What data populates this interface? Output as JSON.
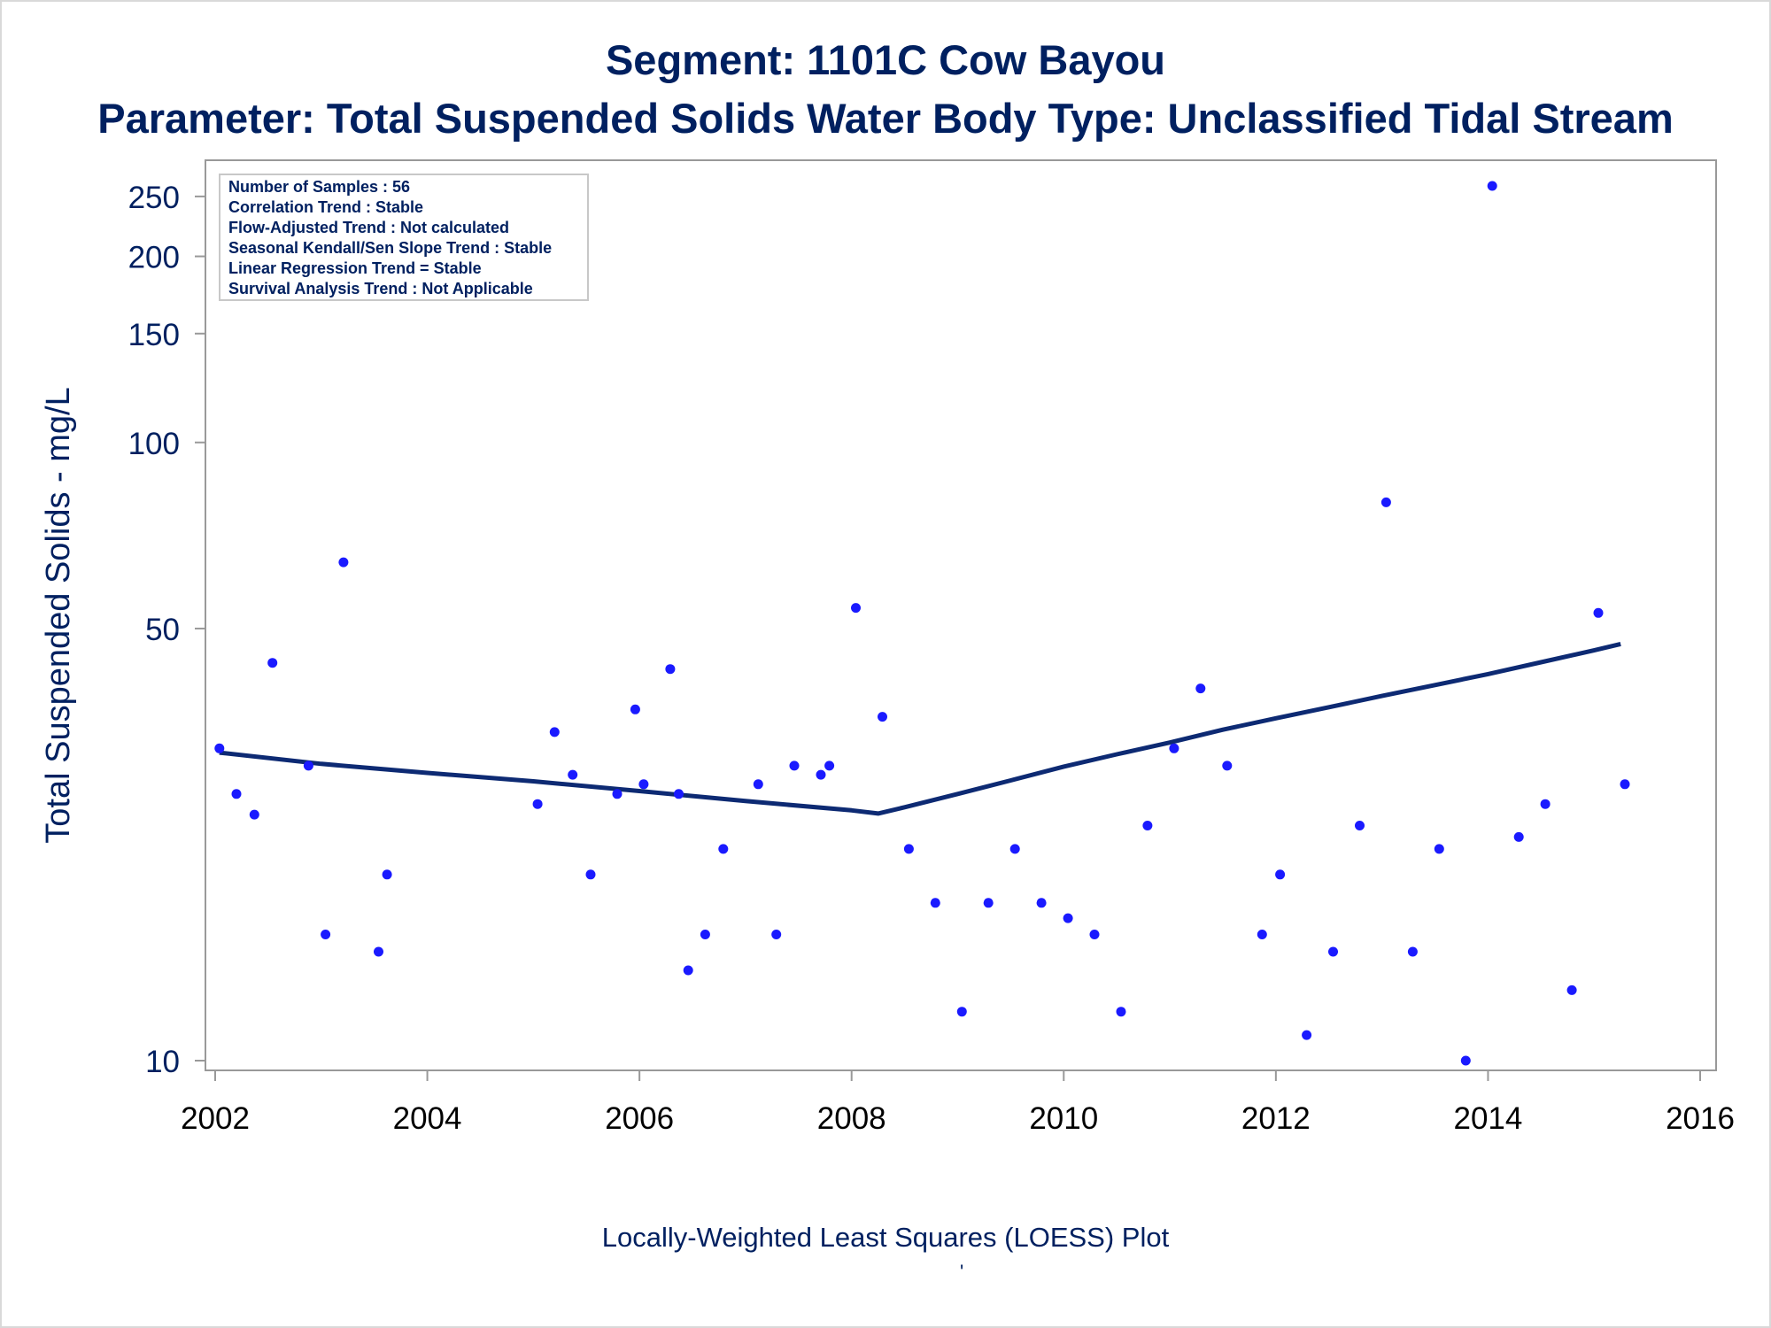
{
  "colors": {
    "text": "#002060",
    "marker": "#1a1aff",
    "loess_line": "#0d2a73",
    "axis": "#999999",
    "info_border": "#c8c8c8"
  },
  "titles": {
    "line1": "Segment: 1101C  Cow Bayou",
    "line2": "Parameter: Total Suspended Solids   Water Body Type: Unclassified Tidal Stream"
  },
  "info_box": [
    "Number of Samples : 56",
    "Correlation Trend : Stable",
    "Flow-Adjusted Trend : Not calculated",
    "Seasonal Kendall/Sen Slope Trend : Stable",
    "Linear Regression Trend = Stable",
    "Survival Analysis Trend : Not Applicable"
  ],
  "footnote": "Locally-Weighted Least Squares (LOESS) Plot",
  "footnote_mark": "'",
  "chart_data": {
    "type": "scatter",
    "xlabel": "",
    "ylabel": "Total Suspended Solids - mg/L",
    "yscale": "log",
    "xlim": [
      2002,
      2016
    ],
    "ylim": [
      10,
      260
    ],
    "xticks": [
      2002,
      2004,
      2006,
      2008,
      2010,
      2012,
      2014,
      2016
    ],
    "yticks": [
      10,
      50,
      100,
      150,
      200,
      250
    ],
    "legend": "top-left info box",
    "points": [
      {
        "x": 2002.04,
        "y": 32
      },
      {
        "x": 2002.2,
        "y": 27
      },
      {
        "x": 2002.37,
        "y": 25
      },
      {
        "x": 2002.54,
        "y": 44
      },
      {
        "x": 2002.88,
        "y": 30
      },
      {
        "x": 2003.04,
        "y": 16
      },
      {
        "x": 2003.21,
        "y": 64
      },
      {
        "x": 2003.54,
        "y": 15
      },
      {
        "x": 2003.62,
        "y": 20
      },
      {
        "x": 2005.04,
        "y": 26
      },
      {
        "x": 2005.2,
        "y": 34
      },
      {
        "x": 2005.37,
        "y": 29
      },
      {
        "x": 2005.54,
        "y": 20
      },
      {
        "x": 2005.79,
        "y": 27
      },
      {
        "x": 2005.96,
        "y": 37
      },
      {
        "x": 2006.04,
        "y": 28
      },
      {
        "x": 2006.29,
        "y": 43
      },
      {
        "x": 2006.37,
        "y": 27
      },
      {
        "x": 2006.46,
        "y": 14
      },
      {
        "x": 2006.62,
        "y": 16
      },
      {
        "x": 2006.79,
        "y": 22
      },
      {
        "x": 2007.12,
        "y": 28
      },
      {
        "x": 2007.29,
        "y": 16
      },
      {
        "x": 2007.46,
        "y": 30
      },
      {
        "x": 2007.71,
        "y": 29
      },
      {
        "x": 2007.79,
        "y": 30
      },
      {
        "x": 2008.04,
        "y": 54
      },
      {
        "x": 2008.29,
        "y": 36
      },
      {
        "x": 2008.54,
        "y": 22
      },
      {
        "x": 2008.79,
        "y": 18
      },
      {
        "x": 2009.04,
        "y": 12
      },
      {
        "x": 2009.29,
        "y": 18
      },
      {
        "x": 2009.54,
        "y": 22
      },
      {
        "x": 2009.79,
        "y": 18
      },
      {
        "x": 2010.04,
        "y": 17
      },
      {
        "x": 2010.29,
        "y": 16
      },
      {
        "x": 2010.54,
        "y": 12
      },
      {
        "x": 2010.79,
        "y": 24
      },
      {
        "x": 2011.04,
        "y": 32
      },
      {
        "x": 2011.29,
        "y": 40
      },
      {
        "x": 2011.54,
        "y": 30
      },
      {
        "x": 2011.87,
        "y": 16
      },
      {
        "x": 2012.04,
        "y": 20
      },
      {
        "x": 2012.29,
        "y": 11
      },
      {
        "x": 2012.54,
        "y": 15
      },
      {
        "x": 2012.79,
        "y": 24
      },
      {
        "x": 2013.04,
        "y": 80
      },
      {
        "x": 2013.29,
        "y": 15
      },
      {
        "x": 2013.54,
        "y": 22
      },
      {
        "x": 2013.79,
        "y": 10
      },
      {
        "x": 2014.04,
        "y": 260
      },
      {
        "x": 2014.29,
        "y": 23
      },
      {
        "x": 2014.54,
        "y": 26
      },
      {
        "x": 2014.79,
        "y": 13
      },
      {
        "x": 2015.04,
        "y": 53
      },
      {
        "x": 2015.29,
        "y": 28
      }
    ],
    "loess": [
      {
        "x": 2002.04,
        "y": 31.5
      },
      {
        "x": 2003.0,
        "y": 30.2
      },
      {
        "x": 2004.0,
        "y": 29.2
      },
      {
        "x": 2005.0,
        "y": 28.3
      },
      {
        "x": 2006.0,
        "y": 27.3
      },
      {
        "x": 2007.0,
        "y": 26.3
      },
      {
        "x": 2008.0,
        "y": 25.4
      },
      {
        "x": 2008.25,
        "y": 25.1
      },
      {
        "x": 2008.5,
        "y": 25.7
      },
      {
        "x": 2009.0,
        "y": 27.0
      },
      {
        "x": 2009.5,
        "y": 28.4
      },
      {
        "x": 2010.0,
        "y": 29.9
      },
      {
        "x": 2010.5,
        "y": 31.3
      },
      {
        "x": 2011.0,
        "y": 32.7
      },
      {
        "x": 2011.5,
        "y": 34.3
      },
      {
        "x": 2012.0,
        "y": 35.8
      },
      {
        "x": 2012.5,
        "y": 37.3
      },
      {
        "x": 2013.0,
        "y": 38.9
      },
      {
        "x": 2013.5,
        "y": 40.5
      },
      {
        "x": 2014.0,
        "y": 42.2
      },
      {
        "x": 2014.5,
        "y": 44.1
      },
      {
        "x": 2015.0,
        "y": 46.1
      },
      {
        "x": 2015.25,
        "y": 47.2
      }
    ]
  }
}
